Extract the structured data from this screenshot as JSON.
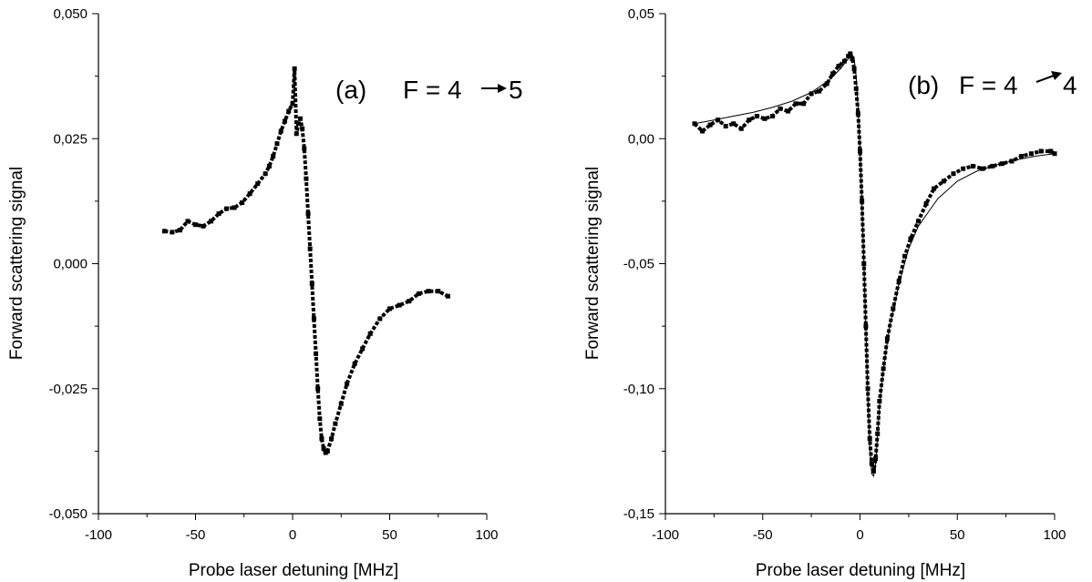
{
  "chart_data": [
    {
      "type": "scatter",
      "annotation": {
        "label": "(a)",
        "text_left": "F = 4",
        "text_right": "5"
      },
      "xlabel": "Probe laser detuning [MHz]",
      "ylabel": "Forward scattering signal",
      "xlim": [
        -100,
        100
      ],
      "ylim": [
        -0.05,
        0.05
      ],
      "xticks": [
        -100,
        -50,
        0,
        50,
        100
      ],
      "xtick_labels": [
        "-100",
        "-50",
        "0",
        "50",
        "100"
      ],
      "yticks": [
        -0.05,
        -0.025,
        0,
        0.025,
        0.05
      ],
      "ytick_labels": [
        "-0,050",
        "-0,025",
        "0,000",
        "0,025",
        "0,050"
      ],
      "grid": false,
      "series": [
        {
          "values": [
            [
              -66,
              0.0065
            ],
            [
              -62,
              0.0063
            ],
            [
              -58,
              0.0067
            ],
            [
              -54,
              0.0085
            ],
            [
              -50,
              0.0078
            ],
            [
              -46,
              0.0075
            ],
            [
              -42,
              0.0085
            ],
            [
              -38,
              0.01
            ],
            [
              -34,
              0.011
            ],
            [
              -30,
              0.0112
            ],
            [
              -26,
              0.0122
            ],
            [
              -22,
              0.014
            ],
            [
              -18,
              0.016
            ],
            [
              -14,
              0.018
            ],
            [
              -12,
              0.0195
            ],
            [
              -10,
              0.0215
            ],
            [
              -8,
              0.024
            ],
            [
              -6,
              0.0265
            ],
            [
              -4,
              0.0285
            ],
            [
              -2,
              0.0305
            ],
            [
              0,
              0.032
            ],
            [
              1,
              0.039
            ],
            [
              2,
              0.026
            ],
            [
              3,
              0.028
            ],
            [
              4,
              0.029
            ],
            [
              5,
              0.027
            ],
            [
              6,
              0.023
            ],
            [
              7,
              0.017
            ],
            [
              8,
              0.01
            ],
            [
              9,
              0.003
            ],
            [
              10,
              -0.004
            ],
            [
              11,
              -0.011
            ],
            [
              12,
              -0.018
            ],
            [
              13,
              -0.025
            ],
            [
              14,
              -0.031
            ],
            [
              15,
              -0.035
            ],
            [
              16,
              -0.037
            ],
            [
              17,
              -0.0378
            ],
            [
              18,
              -0.0375
            ],
            [
              20,
              -0.035
            ],
            [
              22,
              -0.032
            ],
            [
              25,
              -0.028
            ],
            [
              28,
              -0.024
            ],
            [
              32,
              -0.02
            ],
            [
              36,
              -0.017
            ],
            [
              40,
              -0.014
            ],
            [
              45,
              -0.011
            ],
            [
              50,
              -0.009
            ],
            [
              55,
              -0.0083
            ],
            [
              60,
              -0.0075
            ],
            [
              65,
              -0.006
            ],
            [
              70,
              -0.0055
            ],
            [
              75,
              -0.0055
            ],
            [
              80,
              -0.0065
            ]
          ]
        }
      ]
    },
    {
      "type": "scatter",
      "annotation": {
        "label": "(b)",
        "text_left": "F = 4",
        "text_right": "4"
      },
      "xlabel": "Probe laser detuning [MHz]",
      "ylabel": "Forward scattering signal",
      "xlim": [
        -100,
        100
      ],
      "ylim": [
        -0.15,
        0.05
      ],
      "xticks": [
        -100,
        -50,
        0,
        50,
        100
      ],
      "xtick_labels": [
        "-100",
        "-50",
        "0",
        "50",
        "100"
      ],
      "yticks": [
        -0.15,
        -0.1,
        -0.05,
        0,
        0.05
      ],
      "ytick_labels": [
        "-0,15",
        "-0,10",
        "-0,05",
        "0,00",
        "0,05"
      ],
      "grid": false,
      "series": [
        {
          "values": [
            [
              -85,
              0.006
            ],
            [
              -81,
              0.003
            ],
            [
              -77,
              0.0055
            ],
            [
              -73,
              0.0075
            ],
            [
              -69,
              0.005
            ],
            [
              -65,
              0.006
            ],
            [
              -61,
              0.004
            ],
            [
              -57,
              0.0075
            ],
            [
              -53,
              0.009
            ],
            [
              -49,
              0.008
            ],
            [
              -45,
              0.009
            ],
            [
              -41,
              0.012
            ],
            [
              -37,
              0.011
            ],
            [
              -33,
              0.014
            ],
            [
              -29,
              0.014
            ],
            [
              -25,
              0.018
            ],
            [
              -21,
              0.019
            ],
            [
              -17,
              0.022
            ],
            [
              -14,
              0.026
            ],
            [
              -11,
              0.029
            ],
            [
              -8,
              0.031
            ],
            [
              -6,
              0.033
            ],
            [
              -5,
              0.034
            ],
            [
              -4,
              0.032
            ],
            [
              -3,
              0.028
            ],
            [
              -2,
              0.02
            ],
            [
              -1,
              0.01
            ],
            [
              0,
              -0.005
            ],
            [
              1,
              -0.025
            ],
            [
              2,
              -0.05
            ],
            [
              3,
              -0.075
            ],
            [
              4,
              -0.1
            ],
            [
              5,
              -0.12
            ],
            [
              6,
              -0.13
            ],
            [
              7,
              -0.133
            ],
            [
              8,
              -0.128
            ],
            [
              9,
              -0.118
            ],
            [
              10,
              -0.105
            ],
            [
              12,
              -0.092
            ],
            [
              14,
              -0.08
            ],
            [
              17,
              -0.068
            ],
            [
              20,
              -0.057
            ],
            [
              23,
              -0.047
            ],
            [
              26,
              -0.04
            ],
            [
              30,
              -0.033
            ],
            [
              34,
              -0.026
            ],
            [
              38,
              -0.02
            ],
            [
              43,
              -0.017
            ],
            [
              48,
              -0.014
            ],
            [
              53,
              -0.012
            ],
            [
              58,
              -0.011
            ],
            [
              63,
              -0.012
            ],
            [
              68,
              -0.011
            ],
            [
              73,
              -0.01
            ],
            [
              78,
              -0.009
            ],
            [
              83,
              -0.007
            ],
            [
              88,
              -0.006
            ],
            [
              93,
              -0.005
            ],
            [
              98,
              -0.005
            ],
            [
              100,
              -0.006
            ]
          ]
        },
        {
          "values": [
            [
              -85,
              0.006
            ],
            [
              -75,
              0.0075
            ],
            [
              -65,
              0.009
            ],
            [
              -55,
              0.0105
            ],
            [
              -45,
              0.0125
            ],
            [
              -35,
              0.015
            ],
            [
              -25,
              0.0185
            ],
            [
              -15,
              0.024
            ],
            [
              -10,
              0.028
            ],
            [
              -6,
              0.032
            ],
            [
              -4,
              0.0335
            ],
            [
              -3,
              0.032
            ],
            [
              -2,
              0.025
            ],
            [
              -1,
              0.012
            ],
            [
              0,
              -0.005
            ],
            [
              1,
              -0.026
            ],
            [
              2,
              -0.05
            ],
            [
              3,
              -0.076
            ],
            [
              4,
              -0.102
            ],
            [
              5,
              -0.123
            ],
            [
              6,
              -0.134
            ],
            [
              7,
              -0.135
            ],
            [
              8,
              -0.13
            ],
            [
              9,
              -0.119
            ],
            [
              10,
              -0.107
            ],
            [
              12,
              -0.092
            ],
            [
              15,
              -0.076
            ],
            [
              20,
              -0.058
            ],
            [
              25,
              -0.044
            ],
            [
              30,
              -0.035
            ],
            [
              40,
              -0.024
            ],
            [
              50,
              -0.017
            ],
            [
              60,
              -0.013
            ],
            [
              70,
              -0.0105
            ],
            [
              80,
              -0.0085
            ],
            [
              90,
              -0.007
            ],
            [
              100,
              -0.006
            ]
          ]
        }
      ]
    }
  ]
}
